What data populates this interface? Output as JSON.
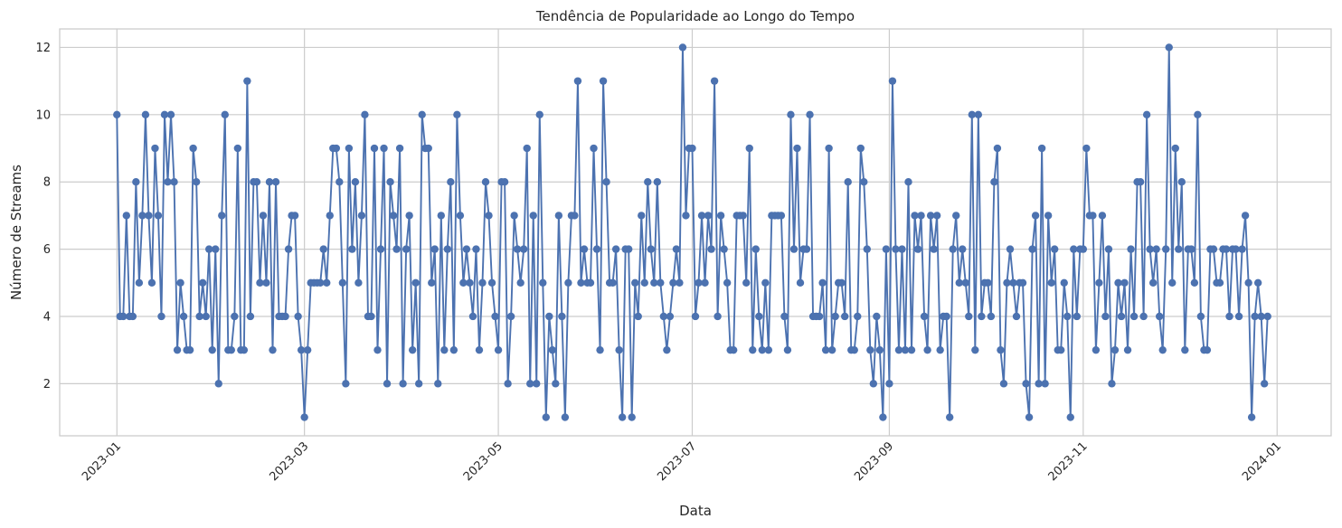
{
  "chart_data": {
    "type": "line",
    "title": "Tendência de Popularidade ao Longo do Tempo",
    "xlabel": "Data",
    "ylabel": "Número de Streams",
    "x_start": "2023-01-01",
    "x_end": "2023-12-31",
    "xlim": [
      "2022-12-14",
      "2024-01-18"
    ],
    "ylim": [
      0.45,
      12.55
    ],
    "x_ticks": [
      "2023-01-01",
      "2023-03-01",
      "2023-05-01",
      "2023-07-01",
      "2023-09-01",
      "2023-11-01",
      "2024-01-01"
    ],
    "x_tick_labels": [
      "2023-01",
      "2023-03",
      "2023-05",
      "2023-07",
      "2023-09",
      "2023-11",
      "2024-01"
    ],
    "y_ticks": [
      2,
      4,
      6,
      8,
      10,
      12
    ],
    "y_tick_labels": [
      "2",
      "4",
      "6",
      "8",
      "10",
      "12"
    ],
    "grid": true,
    "marker": "circle",
    "color": "#4c72b0",
    "series": [
      {
        "values": [
          10,
          4,
          4,
          7,
          4,
          4,
          8,
          5,
          7,
          10,
          7,
          5,
          9,
          7,
          4,
          10,
          8,
          10,
          8,
          3,
          5,
          4,
          3,
          3,
          9,
          8,
          4,
          5,
          4,
          6,
          3,
          6,
          2,
          7,
          10,
          3,
          3,
          4,
          9,
          3,
          3,
          11,
          4,
          8,
          8,
          5,
          7,
          5,
          8,
          3,
          8,
          4,
          4,
          4,
          6,
          7,
          7,
          4,
          3,
          1,
          3,
          5,
          5,
          5,
          5,
          6,
          5,
          7,
          9,
          9,
          8,
          5,
          2,
          9,
          6,
          8,
          5,
          7,
          10,
          4,
          4,
          9,
          3,
          6,
          9,
          2,
          8,
          7,
          6,
          9,
          2,
          6,
          7,
          3,
          5,
          2,
          10,
          9,
          9,
          5,
          6,
          2,
          7,
          3,
          6,
          8,
          3,
          10,
          7,
          5,
          6,
          5,
          4,
          6,
          3,
          5,
          8,
          7,
          5,
          4,
          3,
          8,
          8,
          2,
          4,
          7,
          6,
          5,
          6,
          9,
          2,
          7,
          2,
          10,
          5,
          1,
          4,
          3,
          2,
          7,
          4,
          1,
          5,
          7,
          7,
          11,
          5,
          6,
          5,
          5,
          9,
          6,
          3,
          11,
          8,
          5,
          5,
          6,
          3,
          1,
          6,
          6,
          1,
          5,
          4,
          7,
          5,
          8,
          6,
          5,
          8,
          5,
          4,
          3,
          4,
          5,
          6,
          5,
          12,
          7,
          9,
          9,
          4,
          5,
          7,
          5,
          7,
          6,
          11,
          4,
          7,
          6,
          5,
          3,
          3,
          7,
          7,
          7,
          5,
          9,
          3,
          6,
          4,
          3,
          5,
          3,
          7,
          7,
          7,
          7,
          4,
          3,
          10,
          6,
          9,
          5,
          6,
          6,
          10,
          4,
          4,
          4,
          5,
          3,
          9,
          3,
          4,
          5,
          5,
          4,
          8,
          3,
          3,
          4,
          9,
          8,
          6,
          3,
          2,
          4,
          3,
          1,
          6,
          2,
          11,
          6,
          3,
          6,
          3,
          8,
          3,
          7,
          6,
          7,
          4,
          3,
          7,
          6,
          7,
          3,
          4,
          4,
          1,
          6,
          7,
          5,
          6,
          5,
          4,
          10,
          3,
          10,
          4,
          5,
          5,
          4,
          8,
          9,
          3,
          2,
          5,
          6,
          5,
          4,
          5,
          5,
          2,
          1,
          6,
          7,
          2,
          9,
          2,
          7,
          5,
          6,
          3,
          3,
          5,
          4,
          1,
          6,
          4,
          6,
          6,
          9,
          7,
          7,
          3,
          5,
          7,
          4,
          6,
          2,
          3,
          5,
          4,
          5,
          3,
          6,
          4,
          8,
          8,
          4,
          10,
          6,
          5,
          6,
          4,
          3,
          6,
          12,
          5,
          9,
          6,
          8,
          3,
          6,
          6,
          5,
          10,
          4,
          3,
          3,
          6,
          6,
          5,
          5,
          6,
          6,
          4,
          6,
          6,
          4,
          6,
          7,
          5,
          1,
          4,
          5,
          4,
          2,
          4
        ]
      }
    ]
  }
}
